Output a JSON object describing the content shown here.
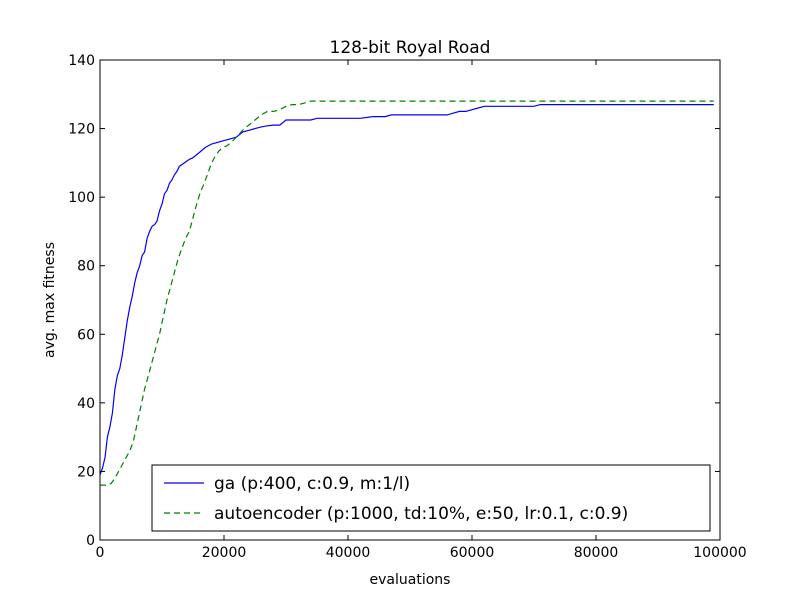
{
  "chart_data": {
    "type": "line",
    "title": "128-bit Royal Road",
    "xlabel": "evaluations",
    "ylabel": "avg. max fitness",
    "xlim": [
      0,
      100000
    ],
    "ylim": [
      0,
      140
    ],
    "xticks": [
      0,
      20000,
      40000,
      60000,
      80000,
      100000
    ],
    "xtick_labels": [
      "0",
      "20000",
      "40000",
      "60000",
      "80000",
      "100000"
    ],
    "yticks": [
      0,
      20,
      40,
      60,
      80,
      100,
      120,
      140
    ],
    "ytick_labels": [
      "0",
      "20",
      "40",
      "60",
      "80",
      "100",
      "120",
      "140"
    ],
    "grid": false,
    "legend_position": "lower-right",
    "series": [
      {
        "name": "ga (p:400, c:0.9, m:1/l)",
        "color": "#0000ff",
        "style": "solid",
        "x": [
          0,
          400,
          800,
          1200,
          1600,
          2000,
          2400,
          2800,
          3200,
          3600,
          4000,
          4400,
          4800,
          5200,
          5600,
          6000,
          6400,
          6800,
          7200,
          7600,
          8000,
          8400,
          8800,
          9200,
          9600,
          10000,
          10400,
          10800,
          11200,
          11600,
          12000,
          12400,
          12800,
          13200,
          13600,
          14000,
          14400,
          15000,
          16000,
          17000,
          18000,
          19000,
          20000,
          21000,
          22000,
          23000,
          24000,
          25000,
          26000,
          27000,
          28000,
          29000,
          30000,
          31000,
          32000,
          33000,
          34000,
          35000,
          36000,
          38000,
          40000,
          42000,
          44000,
          46000,
          47000,
          48000,
          50000,
          52000,
          54000,
          56000,
          57000,
          58000,
          59000,
          60000,
          61000,
          62000,
          64000,
          66000,
          68000,
          70000,
          71000,
          72000,
          75000,
          80000,
          85000,
          90000,
          95000,
          99000
        ],
        "y": [
          19,
          21,
          24,
          30,
          33,
          37,
          44,
          48,
          50,
          54,
          59,
          64,
          68,
          71,
          75,
          78,
          80,
          83,
          84,
          88,
          90,
          91.5,
          92,
          93,
          96,
          98,
          101,
          102,
          104,
          105,
          106.5,
          107.5,
          109,
          109.5,
          110,
          110.5,
          111,
          111.5,
          113,
          114.5,
          115.5,
          116,
          116.5,
          117,
          117.5,
          119,
          119.5,
          120,
          120.5,
          120.8,
          121,
          121,
          122.5,
          122.5,
          122.5,
          122.5,
          122.5,
          123,
          123,
          123,
          123,
          123,
          123.5,
          123.5,
          124,
          124,
          124,
          124,
          124,
          124,
          124.5,
          125,
          125,
          125.5,
          126,
          126.5,
          126.5,
          126.5,
          126.5,
          126.5,
          127,
          127,
          127,
          127,
          127,
          127,
          127,
          127
        ]
      },
      {
        "name": "autoencoder (p:1000, td:10%, e:50, lr:0.1, c:0.9)",
        "color": "#008000",
        "style": "dashed",
        "x": [
          0,
          1000,
          1800,
          2400,
          3000,
          3600,
          4200,
          4800,
          5400,
          6000,
          6600,
          7200,
          7800,
          8400,
          9000,
          9600,
          10200,
          10800,
          11400,
          12000,
          12600,
          13200,
          13800,
          14400,
          15000,
          15600,
          16200,
          16800,
          17400,
          18000,
          18600,
          19200,
          19800,
          20500,
          21200,
          22000,
          23000,
          24000,
          25000,
          26000,
          27000,
          28000,
          29000,
          30000,
          31000,
          32000,
          33000,
          34000,
          35000,
          40000,
          50000,
          60000,
          70000,
          80000,
          90000,
          99000
        ],
        "y": [
          16,
          16,
          16.5,
          18,
          20,
          22,
          24,
          26,
          29,
          34,
          39,
          44,
          48,
          52,
          56,
          60,
          65,
          70,
          74,
          78,
          82,
          85,
          88,
          90,
          94,
          98,
          101.5,
          104,
          107,
          110,
          112,
          113.5,
          114.5,
          115,
          116,
          117.5,
          119.5,
          121,
          122.5,
          124,
          125,
          125,
          125.5,
          126.5,
          127,
          127,
          127.5,
          128,
          128,
          128,
          128,
          128,
          128,
          128,
          128,
          128
        ]
      }
    ]
  }
}
